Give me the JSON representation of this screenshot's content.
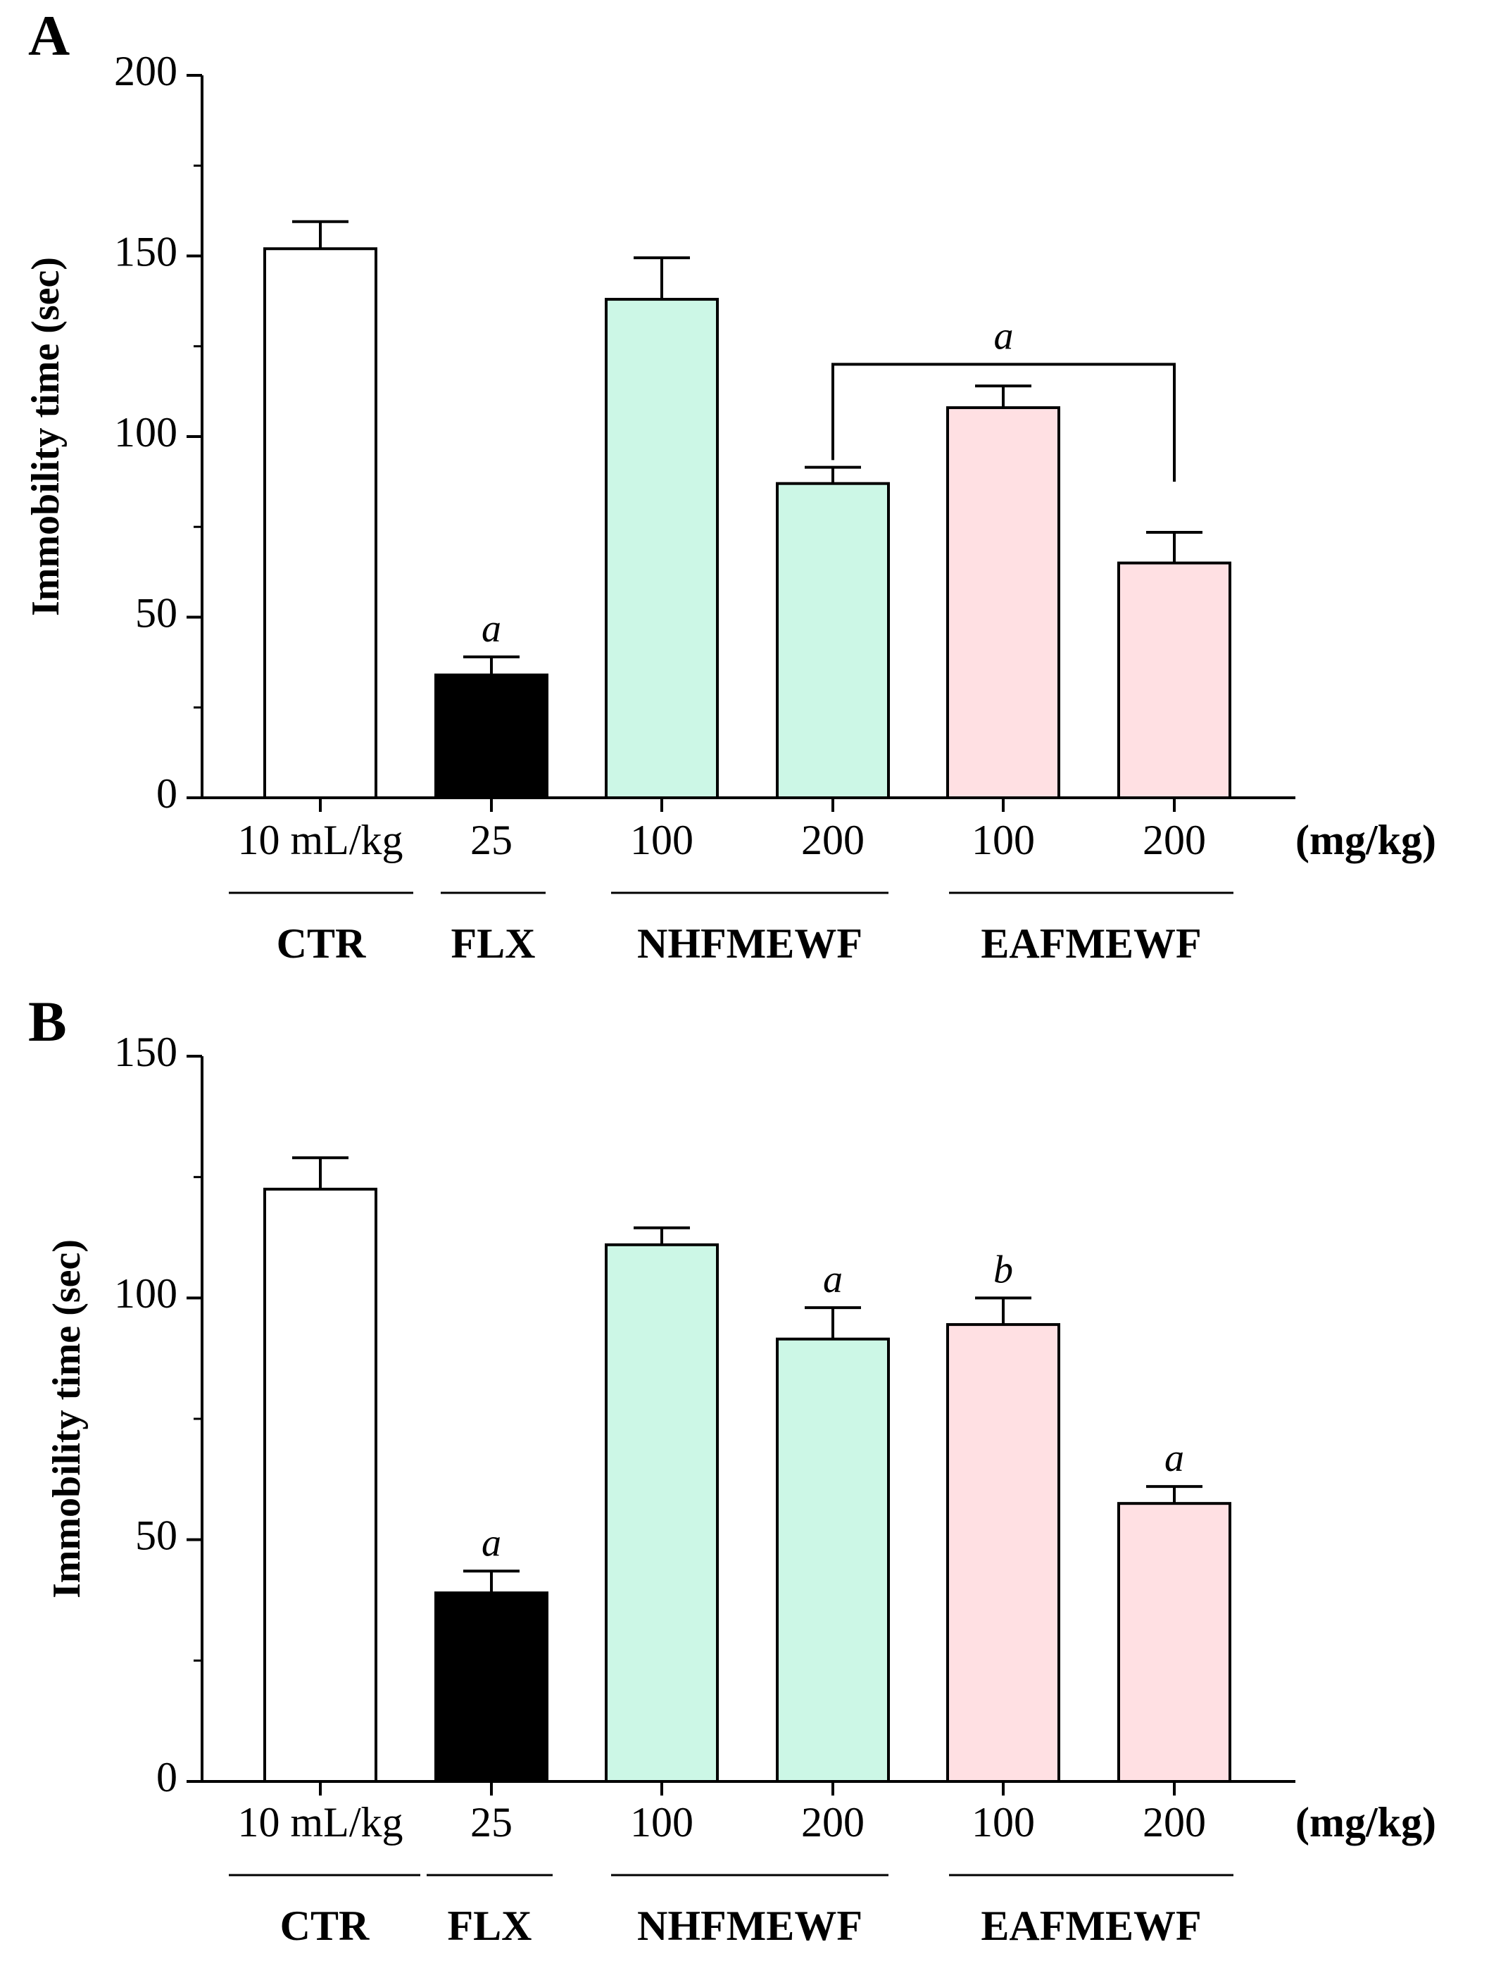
{
  "figure": {
    "unit_label": "(mg/kg)",
    "colors": {
      "CTR": "#ffffff",
      "FLX": "#000000",
      "NHFMEWF": "#ccf7e6",
      "EAFMEWF": "#ffe0e3",
      "axis": "#000000"
    }
  },
  "chart_data": [
    {
      "panel": "A",
      "type": "bar",
      "ylabel": "Immobility time (sec)",
      "ylim": [
        0,
        200
      ],
      "yticks": [
        0,
        50,
        100,
        150,
        200
      ],
      "categories": [
        "10 mL/kg",
        "25",
        "100",
        "200",
        "100",
        "200"
      ],
      "groups": [
        {
          "label": "CTR",
          "bars": [
            0
          ]
        },
        {
          "label": "FLX",
          "bars": [
            1
          ]
        },
        {
          "label": "NHFMEWF",
          "bars": [
            2,
            3
          ]
        },
        {
          "label": "EAFMEWF",
          "bars": [
            4,
            5
          ]
        }
      ],
      "bar_group": [
        "CTR",
        "FLX",
        "NHFMEWF",
        "NHFMEWF",
        "EAFMEWF",
        "EAFMEWF"
      ],
      "values": [
        152,
        34,
        138,
        87,
        108,
        65
      ],
      "errors": [
        7.5,
        5,
        11.5,
        4.5,
        6,
        8.5
      ],
      "annotations": [
        {
          "text": "a",
          "bar": 1
        },
        {
          "text": "a",
          "bracket": [
            3,
            5
          ],
          "level": 120
        }
      ]
    },
    {
      "panel": "B",
      "type": "bar",
      "ylabel": "Immobility time (sec)",
      "ylim": [
        0,
        150
      ],
      "yticks": [
        0,
        50,
        100,
        150
      ],
      "categories": [
        "10 mL/kg",
        "25",
        "100",
        "200",
        "100",
        "200"
      ],
      "groups": [
        {
          "label": "CTR",
          "bars": [
            0
          ]
        },
        {
          "label": "FLX",
          "bars": [
            1
          ]
        },
        {
          "label": "NHFMEWF",
          "bars": [
            2,
            3
          ]
        },
        {
          "label": "EAFMEWF",
          "bars": [
            4,
            5
          ]
        }
      ],
      "bar_group": [
        "CTR",
        "FLX",
        "NHFMEWF",
        "NHFMEWF",
        "EAFMEWF",
        "EAFMEWF"
      ],
      "values": [
        122.5,
        39,
        111,
        91.5,
        94.5,
        57.5
      ],
      "errors": [
        6.5,
        4.5,
        3.5,
        6.5,
        5.5,
        3.5
      ],
      "annotations": [
        {
          "text": "a",
          "bar": 1
        },
        {
          "text": "a",
          "bar": 3
        },
        {
          "text": "b",
          "bar": 4
        },
        {
          "text": "a",
          "bar": 5
        }
      ]
    }
  ]
}
